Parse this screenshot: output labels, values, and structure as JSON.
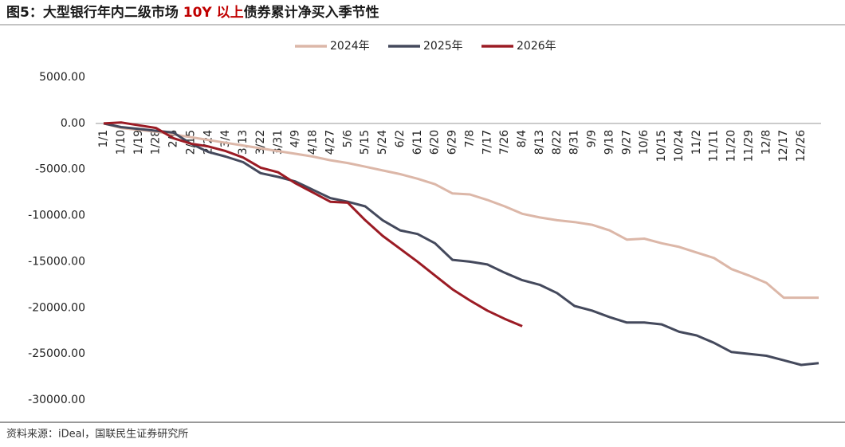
{
  "chart_data": {
    "type": "line",
    "title": "图5：大型银行年内二级市场 ",
    "title_highlight": "10Y 以上",
    "title_end": "债券累计净买入季节性",
    "source": "资料来源：iDeal，国联民生证券研究所",
    "categories": [
      "1/1",
      "1/10",
      "1/19",
      "1/28",
      "2/6",
      "2/15",
      "2/24",
      "3/4",
      "3/13",
      "3/22",
      "3/31",
      "4/9",
      "4/18",
      "4/27",
      "5/6",
      "5/15",
      "5/24",
      "6/2",
      "6/11",
      "6/20",
      "6/29",
      "7/8",
      "7/17",
      "7/26",
      "8/4",
      "8/13",
      "8/22",
      "8/31",
      "9/9",
      "9/18",
      "9/27",
      "10/6",
      "10/15",
      "10/24",
      "11/2",
      "11/11",
      "11/20",
      "11/29",
      "12/8",
      "12/17",
      "12/26",
      null
    ],
    "series": [
      {
        "name": "2024年",
        "color": "#dcb7a8",
        "values": [
          0,
          -500,
          -700,
          -900,
          -1200,
          -1500,
          -1800,
          -2100,
          -2400,
          -2700,
          -3000,
          -3300,
          -3600,
          -4000,
          -4300,
          -4700,
          -5100,
          -5500,
          -6000,
          -6600,
          -7600,
          -7700,
          -8300,
          -9000,
          -9800,
          -10200,
          -10500,
          -10700,
          -11000,
          -11600,
          -12600,
          -12500,
          -13000,
          -13400,
          -14000,
          -14600,
          -15800,
          -16500,
          -17300,
          -18900,
          -18900,
          -18900
        ]
      },
      {
        "name": "2025年",
        "color": "#44495c",
        "values": [
          0,
          -400,
          -600,
          -800,
          -1000,
          -2200,
          -3100,
          -3600,
          -4200,
          -5400,
          -5800,
          -6300,
          -7200,
          -8100,
          -8500,
          -9000,
          -10500,
          -11600,
          -12000,
          -13000,
          -14800,
          -15000,
          -15300,
          -16200,
          -17000,
          -17500,
          -18400,
          -19800,
          -20300,
          -21000,
          -21600,
          -21600,
          -21800,
          -22600,
          -23000,
          -23800,
          -24800,
          -25000,
          -25200,
          -25700,
          -26200,
          -26000
        ]
      },
      {
        "name": "2026年",
        "color": "#9b1b24",
        "values": [
          0,
          100,
          -200,
          -500,
          -1600,
          -2200,
          -2500,
          -3000,
          -3700,
          -4800,
          -5300,
          -6500,
          -7500,
          -8500,
          -8600,
          -10500,
          -12200,
          -13600,
          -15000,
          -16500,
          -18000,
          -19200,
          -20300,
          -21200,
          -22000,
          null,
          null,
          null,
          null,
          null,
          null,
          null,
          null,
          null,
          null,
          null,
          null,
          null,
          null,
          null,
          null,
          null
        ]
      }
    ],
    "ylim": [
      -30000,
      5000
    ],
    "yticks": [
      {
        "value": 5000,
        "label": "5000.00"
      },
      {
        "value": 0,
        "label": "0.00"
      },
      {
        "value": -5000,
        "label": "-5000.00"
      },
      {
        "value": -10000,
        "label": "-10000.00"
      },
      {
        "value": -15000,
        "label": "-15000.00"
      },
      {
        "value": -20000,
        "label": "-20000.00"
      },
      {
        "value": -25000,
        "label": "-25000.00"
      },
      {
        "value": -30000,
        "label": "-30000.00"
      }
    ],
    "legend": "top"
  }
}
